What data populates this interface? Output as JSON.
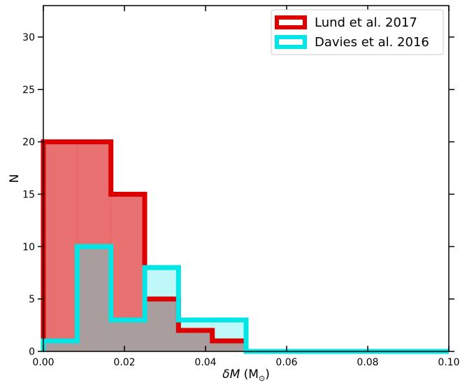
{
  "chart_data": {
    "type": "histogram",
    "xlabel": "δM (M⊙)",
    "ylabel": "N",
    "xlim": [
      0.0,
      0.1
    ],
    "ylim": [
      0,
      33
    ],
    "bin_edges": [
      0.0,
      0.00833,
      0.01667,
      0.025,
      0.03333,
      0.04167,
      0.05,
      0.05833,
      0.06667,
      0.075,
      0.08333,
      0.09167,
      0.1
    ],
    "x_ticks": [
      0.0,
      0.02,
      0.04,
      0.06,
      0.08,
      0.1
    ],
    "x_tick_labels": [
      "0.00",
      "0.02",
      "0.04",
      "0.06",
      "0.08",
      "0.10"
    ],
    "y_ticks": [
      0,
      5,
      10,
      15,
      20,
      25,
      30
    ],
    "y_tick_labels": [
      "0",
      "5",
      "10",
      "15",
      "20",
      "25",
      "30"
    ],
    "legend_position": "top-right",
    "series": [
      {
        "name": "Lund et al. 2017",
        "color": "#dd0000",
        "fill_color": "#e87070",
        "counts": [
          20,
          20,
          15,
          5,
          2,
          1,
          0,
          0,
          0,
          0,
          0,
          0
        ]
      },
      {
        "name": "Davies et al. 2016",
        "color": "#00e5e5",
        "fill_color": "#a8f5f5",
        "counts": [
          1,
          10,
          3,
          8,
          3,
          3,
          0,
          0,
          0,
          0,
          0,
          0
        ]
      }
    ]
  }
}
